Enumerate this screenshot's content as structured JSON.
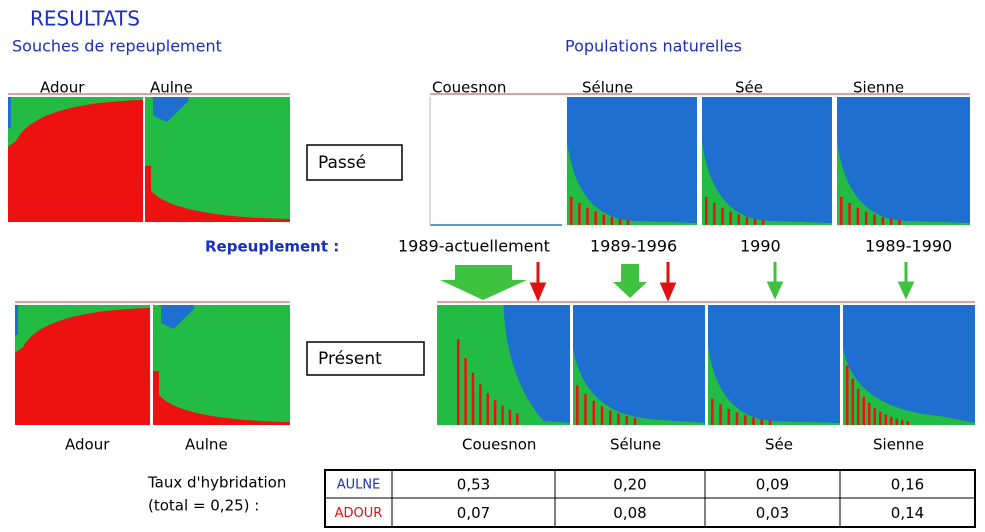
{
  "header": {
    "title": "RESULTATS",
    "left_subtitle": "Souches de repeuplement",
    "right_subtitle": "Populations naturelles"
  },
  "top_labels": [
    "Adour",
    "Aulne",
    "Couesnon",
    "Sélune",
    "Sée",
    "Sienne"
  ],
  "past_label": "Passé",
  "present_label": "Présent",
  "restocking": {
    "label": "Repeuplement :",
    "periods": [
      "1989-actuellement",
      "1989-1996",
      "1990",
      "1989-1990"
    ]
  },
  "bottom_labels": [
    "Adour",
    "Aulne",
    "Couesnon",
    "Sélune",
    "Sée",
    "Sienne"
  ],
  "hybridization": {
    "label": "Taux d'hybridation",
    "total": "(total = 0,25) :"
  },
  "table": {
    "rows": [
      [
        "AULNE",
        "0,53",
        "0,20",
        "0,09",
        "0,16"
      ],
      [
        "ADOUR",
        "0,07",
        "0,08",
        "0,03",
        "0,14"
      ]
    ]
  }
}
